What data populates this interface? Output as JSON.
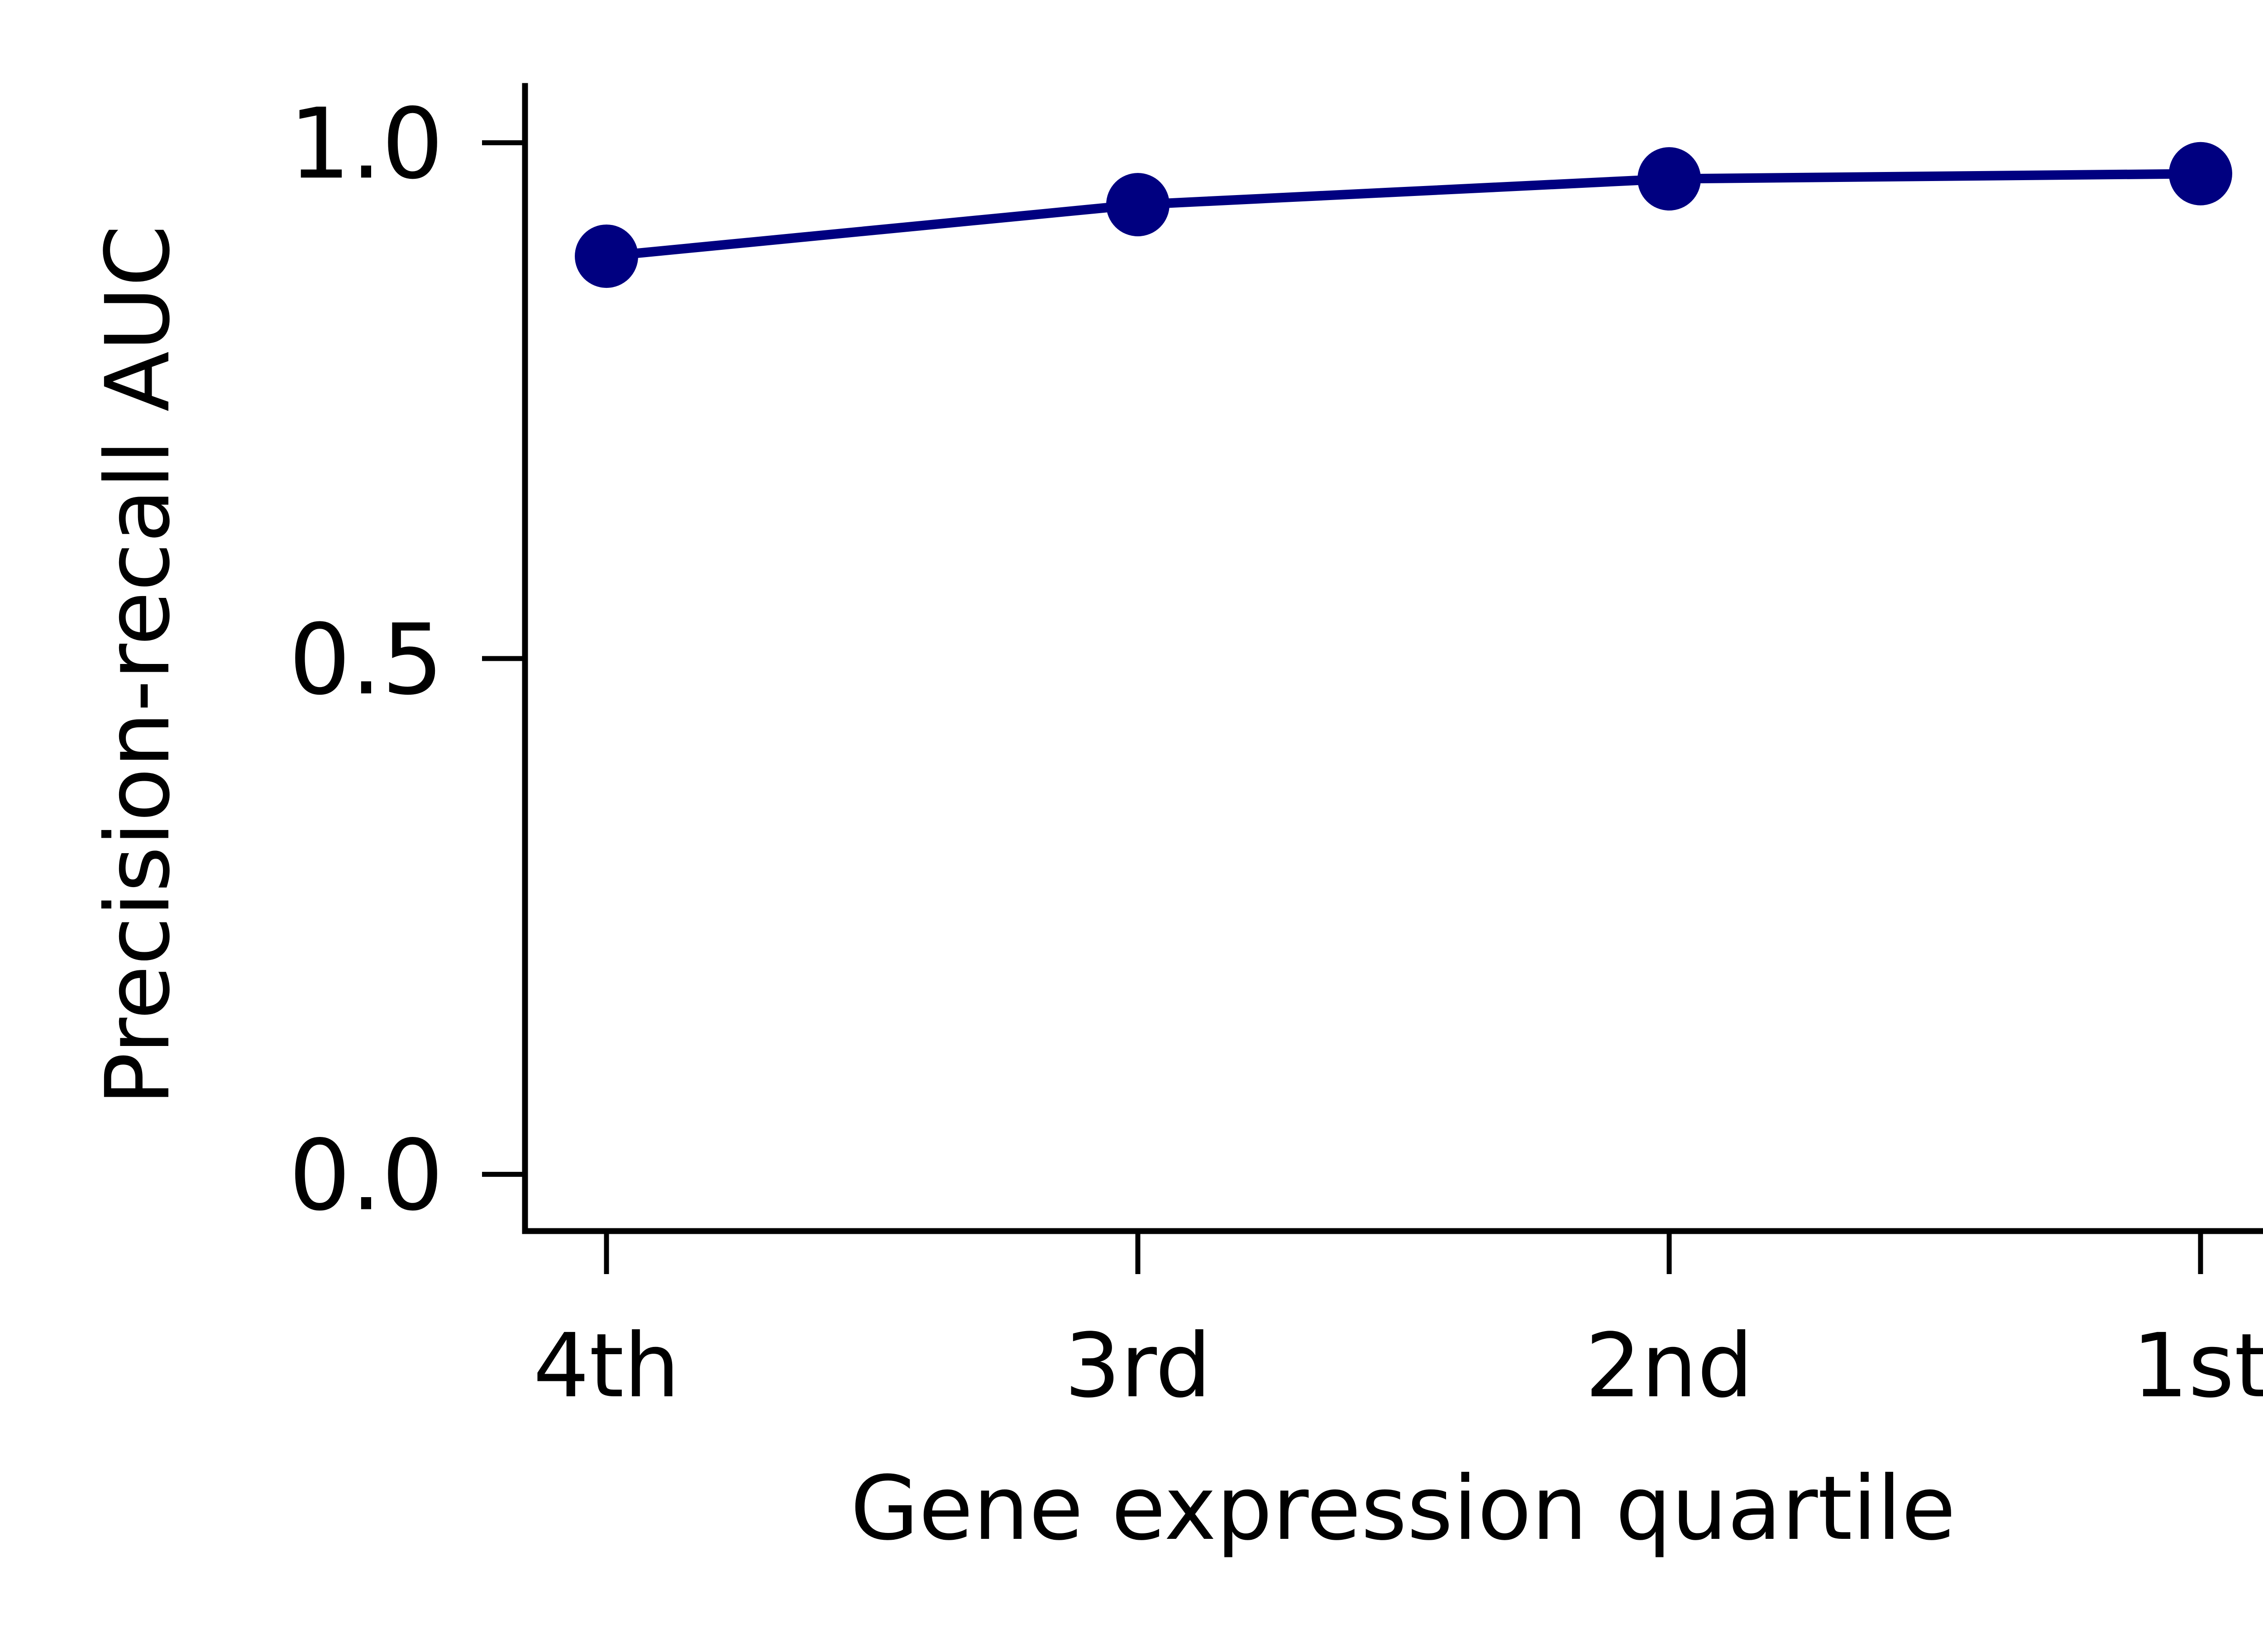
{
  "chart_data": {
    "type": "line",
    "categories": [
      "4th",
      "3rd",
      "2nd",
      "1st"
    ],
    "series": [
      {
        "values": [
          0.89,
          0.94,
          0.965,
          0.97
        ]
      }
    ],
    "xlabel": "Gene expression quartile",
    "ylabel": "Precision-recall AUC",
    "yticks": [
      0.0,
      0.5,
      1.0
    ],
    "ytick_labels": [
      "0.0",
      "0.5",
      "1.0"
    ],
    "ylim": [
      -0.055,
      1.055
    ],
    "grid": false,
    "legend": "none",
    "colors": {
      "series": "#000080",
      "axes": "#000000"
    }
  }
}
